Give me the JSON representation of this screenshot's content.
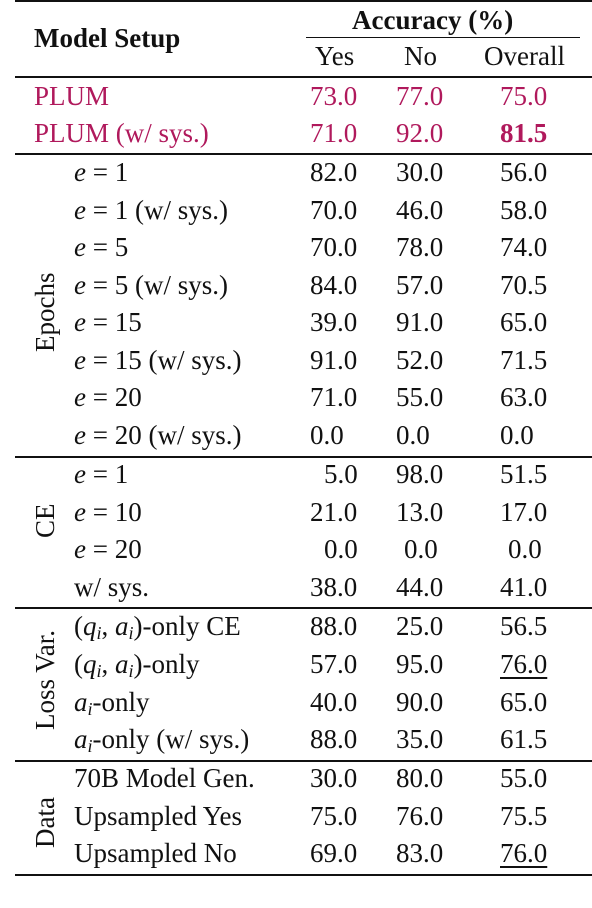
{
  "header": {
    "setup": "Model Setup",
    "accuracy": "Accuracy (%)",
    "yes": "Yes",
    "no": "No",
    "overall": "Overall"
  },
  "plum_rows": [
    {
      "name": "PLUM",
      "yes": "73.0",
      "no": "77.0",
      "overall": "75.0"
    },
    {
      "name": "PLUM (w/ sys.)",
      "yes": "71.0",
      "no": "92.0",
      "overall": "81.5"
    }
  ],
  "groups": [
    {
      "label": "Epochs",
      "rows": [
        {
          "name": "e = 1",
          "yes": "82.0",
          "no": "30.0",
          "overall": "56.0"
        },
        {
          "name": "e = 1 (w/ sys.)",
          "yes": "70.0",
          "no": "46.0",
          "overall": "58.0"
        },
        {
          "name": "e = 5",
          "yes": "70.0",
          "no": "78.0",
          "overall": "74.0"
        },
        {
          "name": "e = 5 (w/ sys.)",
          "yes": "84.0",
          "no": "57.0",
          "overall": "70.5"
        },
        {
          "name": "e = 15",
          "yes": "39.0",
          "no": "91.0",
          "overall": "65.0"
        },
        {
          "name": "e = 15 (w/ sys.)",
          "yes": "91.0",
          "no": "52.0",
          "overall": "71.5"
        },
        {
          "name": "e = 20",
          "yes": "71.0",
          "no": "55.0",
          "overall": "63.0"
        },
        {
          "name": "e = 20 (w/ sys.)",
          "yes": "0.0",
          "no": "0.0",
          "overall": "0.0"
        }
      ]
    },
    {
      "label": "CE",
      "rows": [
        {
          "name": "e = 1",
          "yes": "5.0",
          "no": "98.0",
          "overall": "51.5"
        },
        {
          "name": "e = 10",
          "yes": "21.0",
          "no": "13.0",
          "overall": "17.0"
        },
        {
          "name": "e = 20",
          "yes": "0.0",
          "no": "0.0",
          "overall": "0.0"
        },
        {
          "name": "w/ sys.",
          "yes": "38.0",
          "no": "44.0",
          "overall": "41.0"
        }
      ]
    },
    {
      "label": "Loss Var.",
      "rows": [
        {
          "name": "(qi, ai)-only CE",
          "yes": "88.0",
          "no": "25.0",
          "overall": "56.5"
        },
        {
          "name": "(qi, ai)-only",
          "yes": "57.0",
          "no": "95.0",
          "overall": "76.0"
        },
        {
          "name": "ai-only",
          "yes": "40.0",
          "no": "90.0",
          "overall": "65.0"
        },
        {
          "name": "ai-only (w/ sys.)",
          "yes": "88.0",
          "no": "35.0",
          "overall": "61.5"
        }
      ]
    },
    {
      "label": "Data",
      "rows": [
        {
          "name": "70B Model Gen.",
          "yes": "30.0",
          "no": "80.0",
          "overall": "55.0"
        },
        {
          "name": "Upsampled Yes",
          "yes": "75.0",
          "no": "76.0",
          "overall": "75.5"
        },
        {
          "name": "Upsampled No",
          "yes": "69.0",
          "no": "83.0",
          "overall": "76.0"
        }
      ]
    }
  ],
  "colors": {
    "plum": "#b0195c",
    "text": "#111111"
  }
}
